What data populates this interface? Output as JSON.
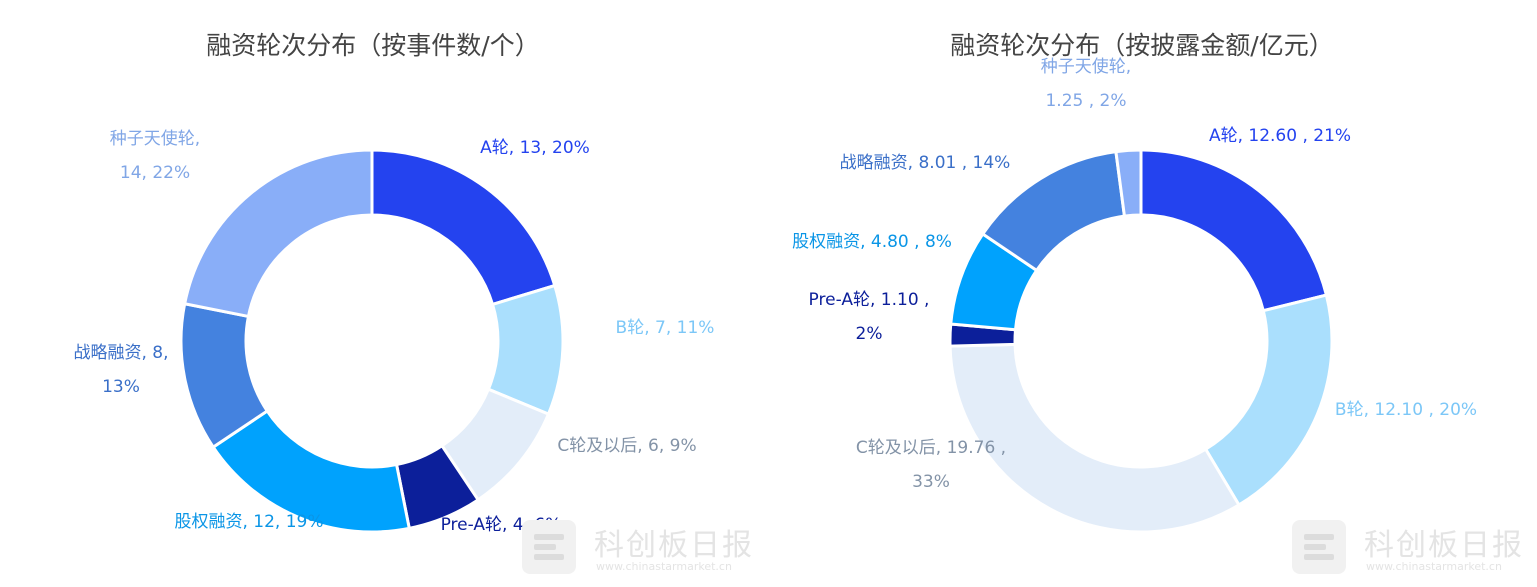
{
  "chart_data": [
    {
      "type": "pie",
      "title": "融资轮次分布（按事件数/个）",
      "slices": [
        {
          "name": "A轮",
          "value": 13,
          "value_text": "13",
          "percent": "20%",
          "color": "#2443ef",
          "label_lines": [
            "A轮, 13, 20%"
          ]
        },
        {
          "name": "B轮",
          "value": 7,
          "value_text": "7",
          "percent": "11%",
          "color": "#aadffd",
          "label_lines": [
            "B轮, 7, 11%"
          ]
        },
        {
          "name": "C轮及以后",
          "value": 6,
          "value_text": "6",
          "percent": "9%",
          "color": "#e3edf9",
          "label_lines": [
            "C轮及以后, 6, 9%"
          ]
        },
        {
          "name": "Pre-A轮",
          "value": 4,
          "value_text": "4",
          "percent": "6%",
          "color": "#0c1f9a",
          "label_lines": [
            "Pre-A轮, 4, 6%"
          ]
        },
        {
          "name": "股权融资",
          "value": 12,
          "value_text": "12",
          "percent": "19%",
          "color": "#00a2fd",
          "label_lines": [
            "股权融资, 12, 19%"
          ]
        },
        {
          "name": "战略融资",
          "value": 8,
          "value_text": "8",
          "percent": "13%",
          "color": "#4482df",
          "label_lines": [
            "战略融资, 8,",
            "13%"
          ]
        },
        {
          "name": "种子天使轮",
          "value": 14,
          "value_text": "14",
          "percent": "22%",
          "color": "#89aef8",
          "label_lines": [
            "种子天使轮,",
            "14, 22%"
          ]
        }
      ]
    },
    {
      "type": "pie",
      "title": "融资轮次分布（按披露金额/亿元）",
      "slices": [
        {
          "name": "A轮",
          "value": 12.6,
          "value_text": "12.60",
          "percent": "21%",
          "color": "#2443ef",
          "label_lines": [
            "A轮, 12.60 , 21%"
          ]
        },
        {
          "name": "B轮",
          "value": 12.1,
          "value_text": "12.10",
          "percent": "20%",
          "color": "#aadffd",
          "label_lines": [
            "B轮, 12.10 , 20%"
          ]
        },
        {
          "name": "C轮及以后",
          "value": 19.76,
          "value_text": "19.76",
          "percent": "33%",
          "color": "#e3edf9",
          "label_lines": [
            "C轮及以后, 19.76 ,",
            "33%"
          ]
        },
        {
          "name": "Pre-A轮",
          "value": 1.1,
          "value_text": "1.10",
          "percent": "2%",
          "color": "#0c1f9a",
          "label_lines": [
            "Pre-A轮, 1.10 ,",
            "2%"
          ]
        },
        {
          "name": "股权融资",
          "value": 4.8,
          "value_text": "4.80",
          "percent": "8%",
          "color": "#00a2fd",
          "label_lines": [
            "股权融资, 4.80 , 8%"
          ]
        },
        {
          "name": "战略融资",
          "value": 8.01,
          "value_text": "8.01",
          "percent": "14%",
          "color": "#4482df",
          "label_lines": [
            "战略融资, 8.01 , 14%"
          ]
        },
        {
          "name": "种子天使轮",
          "value": 1.25,
          "value_text": "1.25",
          "percent": "2%",
          "color": "#89aef8",
          "label_lines": [
            "种子天使轮,",
            "1.25 , 2%"
          ]
        }
      ]
    }
  ],
  "label_colors": {
    "A轮": "#2443ef",
    "B轮": "#7cc7f7",
    "C轮及以后": "#8393a7",
    "Pre-A轮": "#0c1f9a",
    "股权融资": "#0a95e6",
    "战略融资": "#3a6fc8",
    "种子天使轮": "#80a6e6"
  },
  "watermark": {
    "name": "科创板日报",
    "url": "www.chinastarmarket.cn",
    "icon": "newspaper-logo-icon"
  }
}
